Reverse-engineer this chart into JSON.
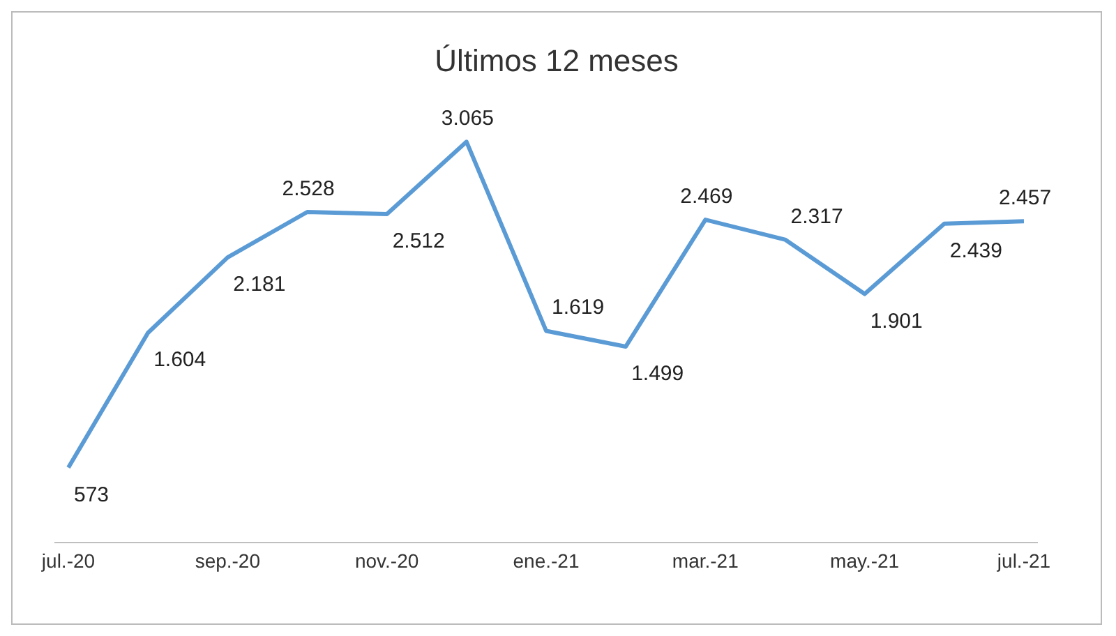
{
  "chart_data": {
    "type": "line",
    "title": "Últimos 12 meses",
    "categories": [
      "jul.-20",
      null,
      "sep.-20",
      null,
      "nov.-20",
      null,
      "ene.-21",
      null,
      "mar.-21",
      null,
      "may.-21",
      null,
      "jul.-21"
    ],
    "series": [
      {
        "color": "#5b9bd5",
        "values": [
          573,
          1604,
          2181,
          2528,
          2512,
          3065,
          1619,
          1499,
          2469,
          2317,
          1901,
          2439,
          2457
        ],
        "value_labels": [
          "573",
          "1.604",
          "2.181",
          "2.528",
          "2.512",
          "3.065",
          "1.619",
          "1.499",
          "2.469",
          "2.317",
          "1.901",
          "2.439",
          "2.457"
        ]
      }
    ],
    "tick_labels": "x",
    "marker": "none",
    "line_style": "solid"
  }
}
